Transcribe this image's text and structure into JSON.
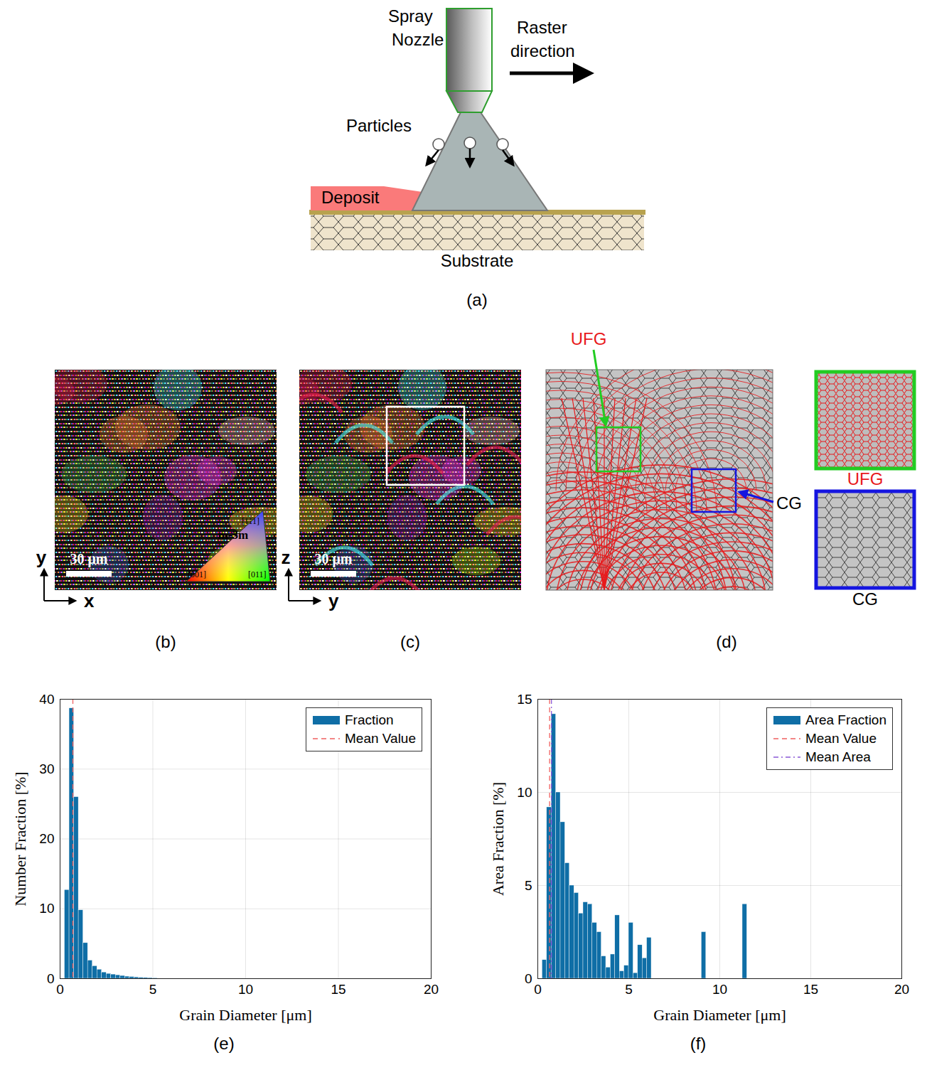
{
  "figure": {
    "schematic": {
      "panel": "(a)",
      "nozzle": [
        "Spray",
        "Nozzle"
      ],
      "raster": [
        "Raster",
        "direction"
      ],
      "particles": "Particles",
      "deposit": "Deposit",
      "substrate": "Substrate"
    },
    "maps": [
      {
        "panel": "(b)",
        "scale_bar": "30 μm",
        "axes": [
          "x",
          "y"
        ],
        "ipf_key": {
          "title": "m-3m",
          "corners": [
            "[001]",
            "[011]",
            "[111]"
          ]
        }
      },
      {
        "panel": "(c)",
        "scale_bar": "30 μm",
        "axes": [
          "y",
          "z"
        ]
      },
      {
        "panel": "(d)",
        "callouts": [
          {
            "label": "UFG",
            "color": "#e8191b"
          },
          {
            "label": "CG",
            "color": "#000000"
          }
        ],
        "insets": [
          {
            "label": "UFG",
            "color": "#e8191b",
            "border": "#22cc22"
          },
          {
            "label": "CG",
            "color": "#000000",
            "border": "#1515e0"
          }
        ]
      }
    ]
  },
  "chart_data": [
    {
      "type": "histogram",
      "panel": "(e)",
      "xlabel": "Grain Diameter [μm]",
      "ylabel": "Number Fraction [%]",
      "bins": [
        0.25,
        0.5,
        0.75,
        1,
        1.25,
        1.5,
        1.75,
        2,
        2.25,
        2.5,
        2.75,
        3,
        3.25,
        3.5,
        3.75,
        4,
        4.25,
        4.5,
        4.75,
        5,
        5.25
      ],
      "series": [
        {
          "name": "Fraction",
          "color": "#0f6ea6",
          "values": [
            12.7,
            38.7,
            26.0,
            9.8,
            5.1,
            2.6,
            1.8,
            1.3,
            0.9,
            0.7,
            0.6,
            0.5,
            0.4,
            0.3,
            0.25,
            0.2,
            0.15,
            0.12,
            0.1,
            0.08
          ]
        }
      ],
      "lines": [
        {
          "name": "Mean Value",
          "x": 0.69,
          "color": "#f06060",
          "line_style": "dashed"
        }
      ],
      "xlim": [
        0,
        20
      ],
      "xticks": [
        0,
        5,
        10,
        15,
        20
      ],
      "ylim": [
        0,
        40
      ],
      "yticks": [
        0,
        10,
        20,
        30,
        40
      ],
      "grid": true,
      "legend": "top-right"
    },
    {
      "type": "histogram",
      "panel": "(f)",
      "xlabel": "Grain Diameter [μm]",
      "ylabel": "Area Fraction [%]",
      "bins": [
        0.25,
        0.5,
        0.75,
        1,
        1.25,
        1.5,
        1.75,
        2,
        2.25,
        2.5,
        2.75,
        3,
        3.25,
        3.5,
        3.75,
        4,
        4.25,
        4.5,
        4.75,
        5,
        5.25,
        5.5,
        5.75,
        6,
        6.25,
        6.5,
        6.75,
        7,
        7.25,
        7.5,
        7.75,
        8,
        8.25,
        8.5,
        8.75,
        9,
        9.25,
        9.5,
        9.75,
        10,
        10.25,
        10.5,
        10.75,
        11,
        11.25,
        11.5
      ],
      "series": [
        {
          "name": "Area Fraction",
          "color": "#0f6ea6",
          "values": [
            1.0,
            9.2,
            14.2,
            10.0,
            8.4,
            6.2,
            5.0,
            4.6,
            3.5,
            4.1,
            4.0,
            3.0,
            2.5,
            1.2,
            0.6,
            1.3,
            3.4,
            0.4,
            0.7,
            3.0,
            0.3,
            1.8,
            1.1,
            2.2,
            0,
            0,
            0,
            0,
            0,
            0,
            0,
            0,
            0,
            0,
            0,
            2.5,
            0,
            0,
            0,
            0,
            0,
            0,
            0,
            0,
            4.0
          ]
        }
      ],
      "lines": [
        {
          "name": "Mean Value",
          "x": 0.65,
          "color": "#f06060",
          "line_style": "dashed"
        },
        {
          "name": "Mean Area",
          "x": 0.75,
          "color": "#8a5ad6",
          "line_style": "dashdot"
        }
      ],
      "xlim": [
        0,
        20
      ],
      "xticks": [
        0,
        5,
        10,
        15,
        20
      ],
      "ylim": [
        0,
        15
      ],
      "yticks": [
        0,
        5,
        10,
        15
      ],
      "grid": true,
      "legend": "top-right"
    }
  ]
}
